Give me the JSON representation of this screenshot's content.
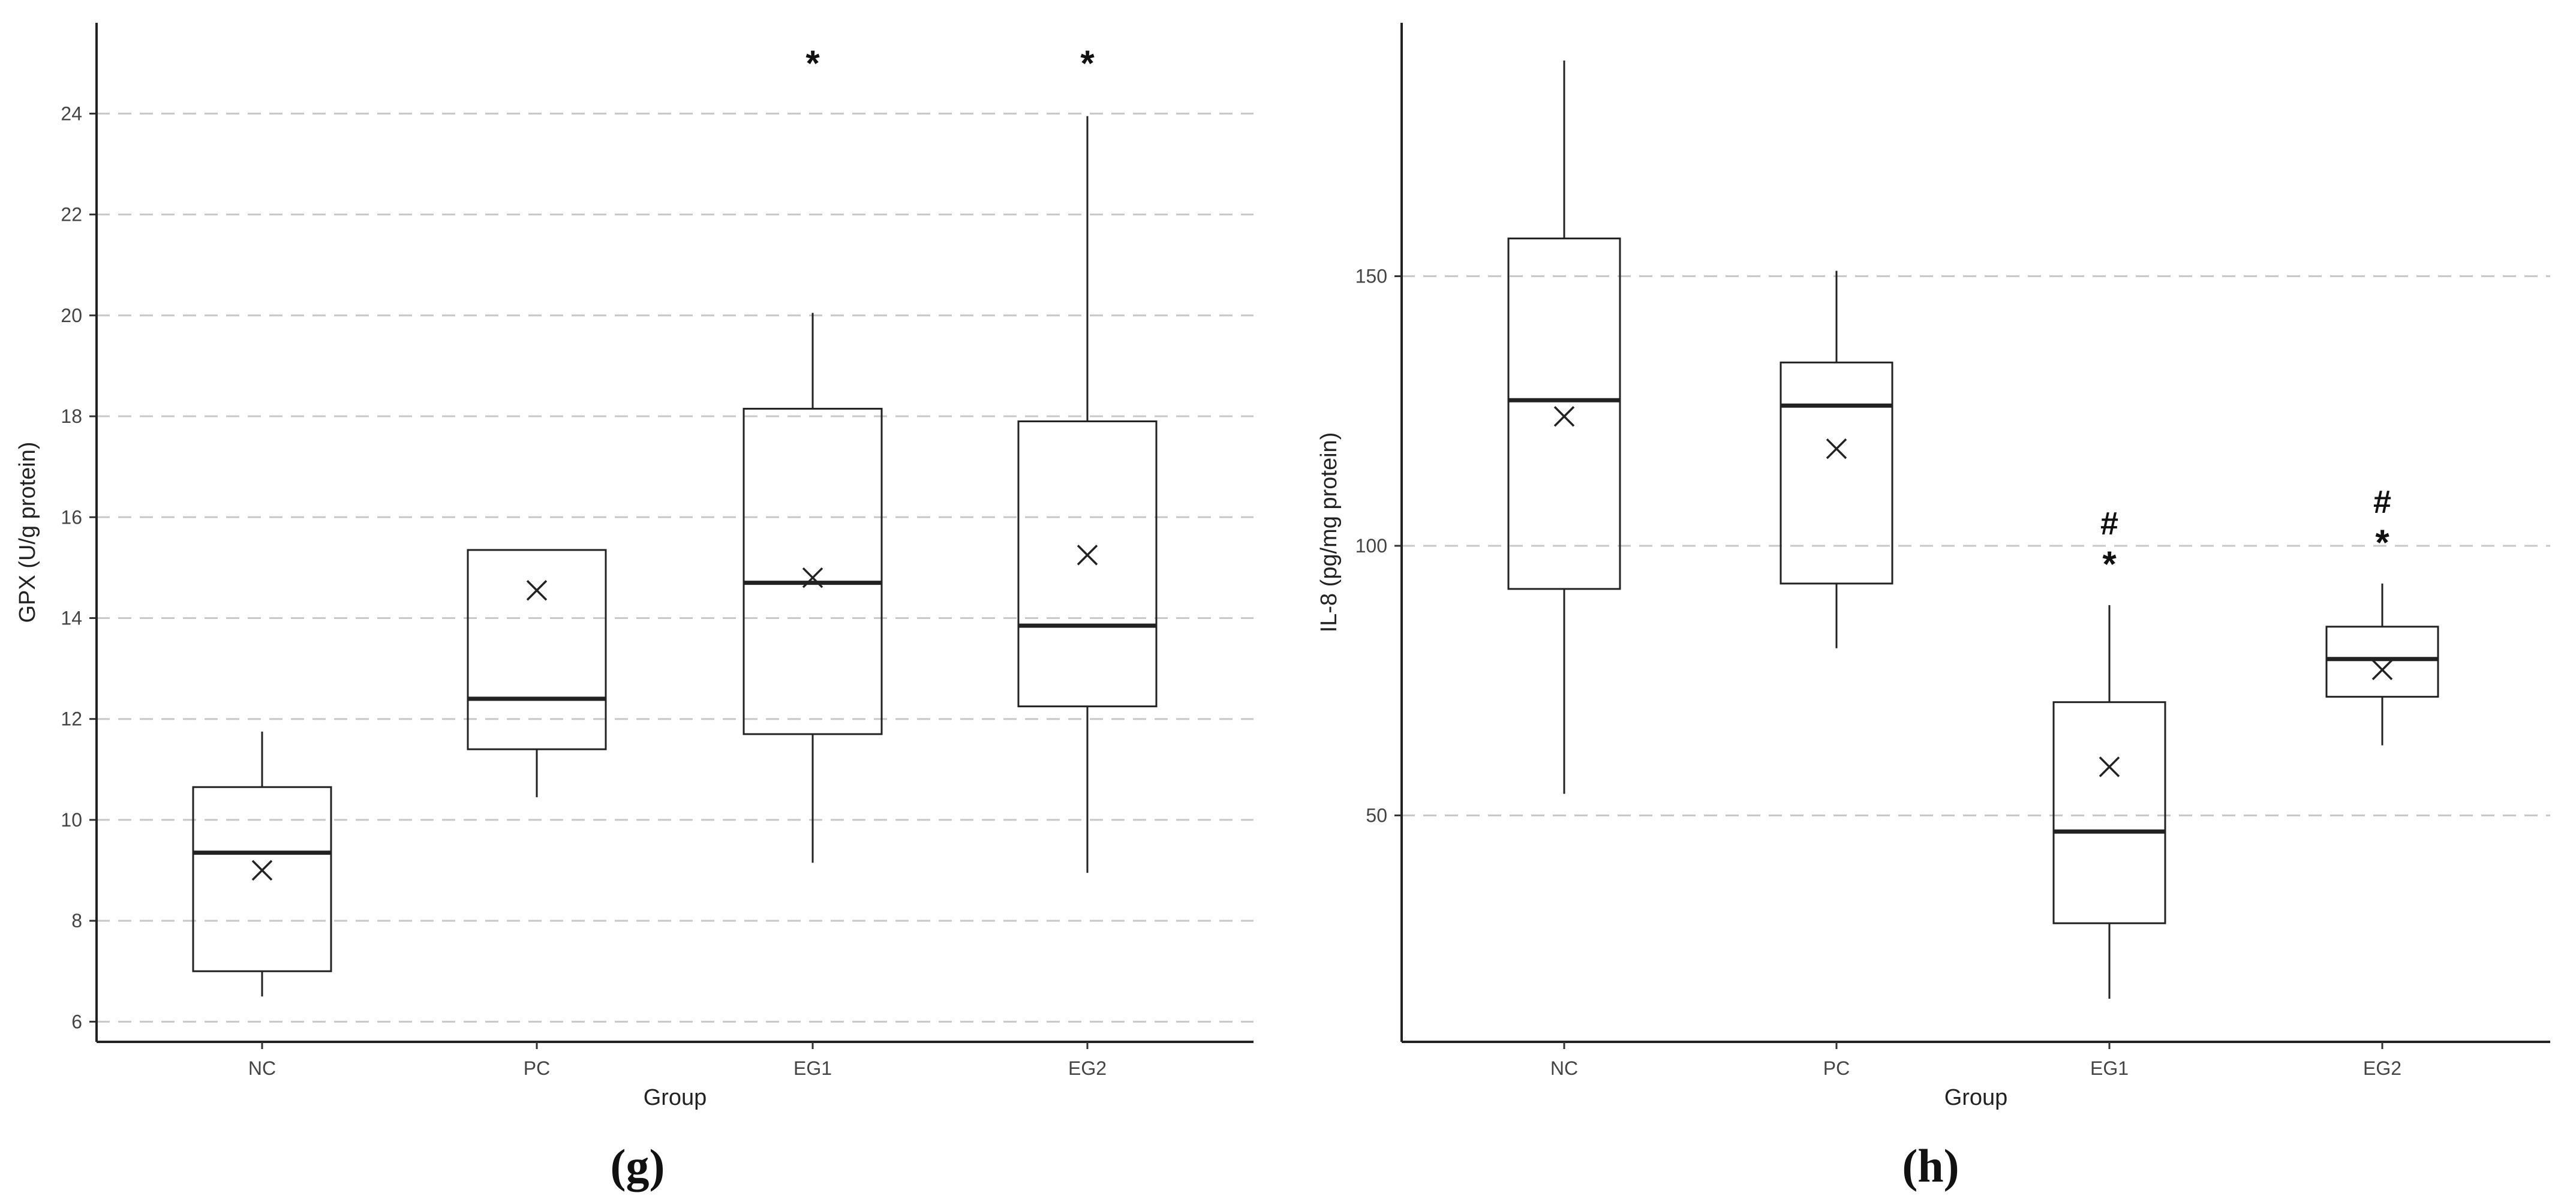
{
  "chart_data": [
    {
      "type": "box",
      "panel_label": "(g)",
      "xlabel": "Group",
      "ylabel": "GPX (U/g protein)",
      "ylim": [
        5.6,
        25.8
      ],
      "yticks": [
        6,
        8,
        10,
        12,
        14,
        16,
        18,
        20,
        22,
        24
      ],
      "grid": "horizontal-dashed",
      "categories": [
        "NC",
        "PC",
        "EG1",
        "EG2"
      ],
      "boxes": [
        {
          "group": "NC",
          "whisker_low": 6.5,
          "q1": 7.0,
          "median": 9.35,
          "q3": 10.65,
          "whisker_high": 11.75,
          "mean": 9.0,
          "marks": []
        },
        {
          "group": "PC",
          "whisker_low": 10.45,
          "q1": 11.4,
          "median": 12.4,
          "q3": 15.35,
          "whisker_high": 15.35,
          "mean": 14.55,
          "marks": []
        },
        {
          "group": "EG1",
          "whisker_low": 9.15,
          "q1": 11.7,
          "median": 14.7,
          "q3": 18.15,
          "whisker_high": 20.05,
          "mean": 14.8,
          "marks": [
            "*"
          ]
        },
        {
          "group": "EG2",
          "whisker_low": 8.95,
          "q1": 12.25,
          "median": 13.85,
          "q3": 17.9,
          "whisker_high": 23.95,
          "mean": 15.25,
          "marks": [
            "*"
          ]
        }
      ]
    },
    {
      "type": "box",
      "panel_label": "(h)",
      "xlabel": "Group",
      "ylabel": "IL-8 (pg/mg protein)",
      "ylim": [
        8,
        197
      ],
      "yticks": [
        50,
        100,
        150
      ],
      "grid": "horizontal-dashed",
      "categories": [
        "NC",
        "PC",
        "EG1",
        "EG2"
      ],
      "boxes": [
        {
          "group": "NC",
          "whisker_low": 54,
          "q1": 92,
          "median": 127,
          "q3": 157,
          "whisker_high": 190,
          "mean": 124,
          "marks": []
        },
        {
          "group": "PC",
          "whisker_low": 81,
          "q1": 93,
          "median": 126,
          "q3": 134,
          "whisker_high": 151,
          "mean": 118,
          "marks": []
        },
        {
          "group": "EG1",
          "whisker_low": 16,
          "q1": 30,
          "median": 47,
          "q3": 71,
          "whisker_high": 89,
          "mean": 59,
          "marks": [
            "*",
            "#"
          ]
        },
        {
          "group": "EG2",
          "whisker_low": 63,
          "q1": 72,
          "median": 79,
          "q3": 85,
          "whisker_high": 93,
          "mean": 77,
          "marks": [
            "*",
            "#"
          ]
        }
      ]
    }
  ]
}
